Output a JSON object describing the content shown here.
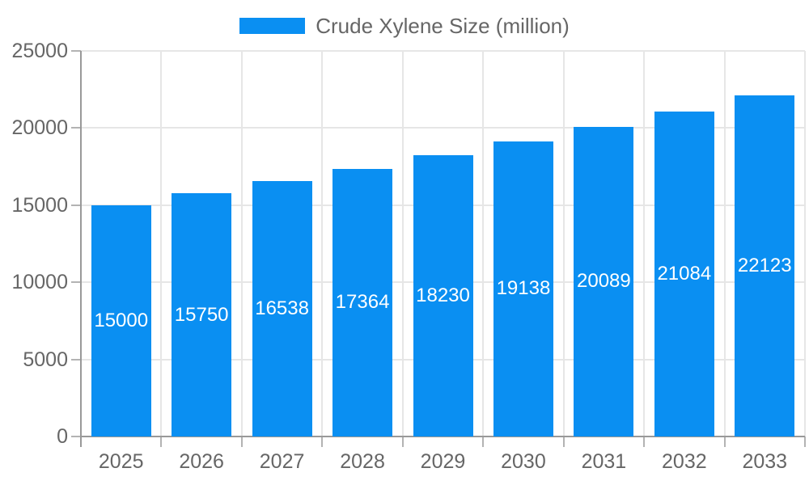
{
  "legend": {
    "label": "Crude Xylene Size (million)"
  },
  "chart_data": {
    "type": "bar",
    "title": "Crude Xylene Size (million)",
    "categories": [
      "2025",
      "2026",
      "2027",
      "2028",
      "2029",
      "2030",
      "2031",
      "2032",
      "2033"
    ],
    "values": [
      15000,
      15750,
      16538,
      17364,
      18230,
      19138,
      20089,
      21084,
      22123
    ],
    "series": [
      {
        "name": "Crude Xylene Size (million)",
        "values": [
          15000,
          15750,
          16538,
          17364,
          18230,
          19138,
          20089,
          21084,
          22123
        ]
      }
    ],
    "xlabel": "",
    "ylabel": "",
    "ylim": [
      0,
      25000
    ],
    "yticks": [
      0,
      5000,
      10000,
      15000,
      20000,
      25000
    ],
    "grid": true,
    "legend_position": "top",
    "value_labels": "white, centered inside bars",
    "colors": {
      "bar": "#0a8ff2",
      "axis": "#999999",
      "grid": "#e6e6e6",
      "tick": "#b3b3b3",
      "label_text": "#666666",
      "value_text": "#ffffff",
      "background": "#ffffff"
    }
  }
}
